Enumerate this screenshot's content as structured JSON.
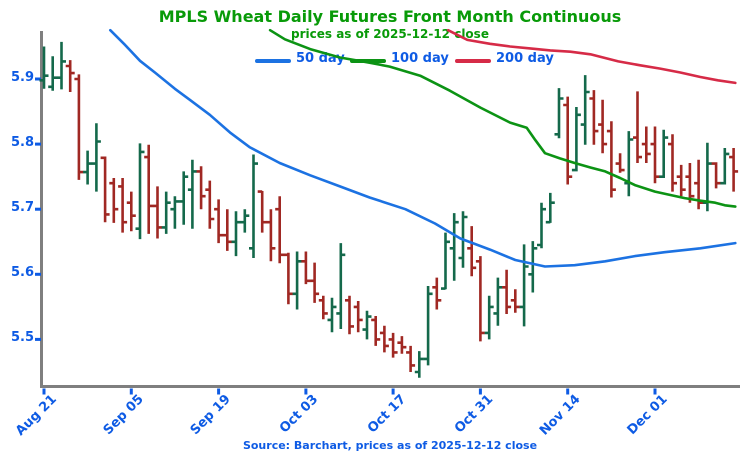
{
  "title": "MPLS Wheat Daily Futures Front Month Continuous",
  "subtitle": "prices as of 2025-12-12 close",
  "source": "Source: Barchart, prices as of 2025-12-12 close",
  "legend": [
    {
      "label": "50 day",
      "color": "#1c72e2"
    },
    {
      "label": "100 day",
      "color": "#0c9314"
    },
    {
      "label": "200 day",
      "color": "#d62b47"
    }
  ],
  "colors": {
    "bar_up": "#14694b",
    "bar_down": "#a02823",
    "axis": "#7f7f7f",
    "tick": "#0e5be4",
    "text_blue": "#0e5be4",
    "title_green": "#089a08"
  },
  "chart_data": {
    "type": "bar",
    "subtype": "ohlc-open-close-ticks",
    "title": "MPLS Wheat Daily Futures Front Month Continuous",
    "subtitle": "prices as of 2025-12-12 close",
    "xlabel": "",
    "ylabel": "",
    "grid": false,
    "legend_position": "top-center",
    "ylim": [
      5.43,
      5.975
    ],
    "yticks": [
      5.9,
      5.8,
      5.7,
      5.6,
      5.5
    ],
    "xtick_labels": [
      "Aug 21",
      "Sep 05",
      "Sep 19",
      "Oct 03",
      "Oct 17",
      "Oct 31",
      "Nov 14",
      "Dec 01"
    ],
    "xtick_day_index": [
      0,
      10,
      20,
      30,
      40,
      50,
      60,
      70
    ],
    "bars_ohlc": [
      [
        5.898,
        5.95,
        5.885,
        5.905
      ],
      [
        5.888,
        5.935,
        5.882,
        5.902
      ],
      [
        5.902,
        5.957,
        5.884,
        5.927
      ],
      [
        5.92,
        5.929,
        5.88,
        5.909
      ],
      [
        5.9,
        5.907,
        5.745,
        5.757
      ],
      [
        5.757,
        5.79,
        5.738,
        5.77
      ],
      [
        5.77,
        5.832,
        5.727,
        5.804
      ],
      [
        5.779,
        5.781,
        5.68,
        5.692
      ],
      [
        5.74,
        5.748,
        5.679,
        5.7
      ],
      [
        5.735,
        5.748,
        5.664,
        5.68
      ],
      [
        5.71,
        5.727,
        5.666,
        5.69
      ],
      [
        5.67,
        5.801,
        5.654,
        5.788
      ],
      [
        5.78,
        5.799,
        5.662,
        5.705
      ],
      [
        5.705,
        5.735,
        5.655,
        5.672
      ],
      [
        5.672,
        5.727,
        5.662,
        5.71
      ],
      [
        5.7,
        5.72,
        5.67,
        5.712
      ],
      [
        5.712,
        5.758,
        5.676,
        5.75
      ],
      [
        5.73,
        5.776,
        5.67,
        5.758
      ],
      [
        5.758,
        5.766,
        5.7,
        5.72
      ],
      [
        5.73,
        5.744,
        5.67,
        5.685
      ],
      [
        5.7,
        5.715,
        5.648,
        5.66
      ],
      [
        5.66,
        5.7,
        5.636,
        5.65
      ],
      [
        5.65,
        5.697,
        5.628,
        5.68
      ],
      [
        5.68,
        5.7,
        5.664,
        5.69
      ],
      [
        5.64,
        5.784,
        5.625,
        5.77
      ],
      [
        5.727,
        5.728,
        5.664,
        5.68
      ],
      [
        5.68,
        5.7,
        5.62,
        5.64
      ],
      [
        5.7,
        5.72,
        5.617,
        5.63
      ],
      [
        5.63,
        5.633,
        5.554,
        5.57
      ],
      [
        5.57,
        5.635,
        5.546,
        5.62
      ],
      [
        5.62,
        5.635,
        5.585,
        5.59
      ],
      [
        5.59,
        5.618,
        5.556,
        5.57
      ],
      [
        5.56,
        5.567,
        5.531,
        5.54
      ],
      [
        5.53,
        5.564,
        5.511,
        5.55
      ],
      [
        5.54,
        5.648,
        5.516,
        5.63
      ],
      [
        5.56,
        5.567,
        5.508,
        5.52
      ],
      [
        5.55,
        5.559,
        5.511,
        5.53
      ],
      [
        5.515,
        5.544,
        5.5,
        5.535
      ],
      [
        5.53,
        5.536,
        5.49,
        5.5
      ],
      [
        5.51,
        5.521,
        5.48,
        5.49
      ],
      [
        5.5,
        5.51,
        5.472,
        5.48
      ],
      [
        5.495,
        5.505,
        5.478,
        5.488
      ],
      [
        5.48,
        5.49,
        5.45,
        5.46
      ],
      [
        5.45,
        5.482,
        5.441,
        5.47
      ],
      [
        5.47,
        5.582,
        5.46,
        5.57
      ],
      [
        5.58,
        5.595,
        5.546,
        5.56
      ],
      [
        5.578,
        5.664,
        5.577,
        5.65
      ],
      [
        5.64,
        5.694,
        5.59,
        5.68
      ],
      [
        5.625,
        5.697,
        5.61,
        5.688
      ],
      [
        5.64,
        5.674,
        5.597,
        5.61
      ],
      [
        5.62,
        5.628,
        5.497,
        5.51
      ],
      [
        5.51,
        5.567,
        5.5,
        5.55
      ],
      [
        5.54,
        5.595,
        5.521,
        5.58
      ],
      [
        5.58,
        5.607,
        5.539,
        5.55
      ],
      [
        5.56,
        5.577,
        5.541,
        5.55
      ],
      [
        5.55,
        5.646,
        5.52,
        5.612
      ],
      [
        5.6,
        5.651,
        5.572,
        5.64
      ],
      [
        5.645,
        5.71,
        5.64,
        5.7
      ],
      [
        5.68,
        5.725,
        5.679,
        5.71
      ],
      [
        5.815,
        5.886,
        5.809,
        5.87
      ],
      [
        5.86,
        5.873,
        5.738,
        5.75
      ],
      [
        5.76,
        5.857,
        5.758,
        5.845
      ],
      [
        5.83,
        5.906,
        5.799,
        5.88
      ],
      [
        5.87,
        5.883,
        5.799,
        5.82
      ],
      [
        5.83,
        5.868,
        5.786,
        5.8
      ],
      [
        5.82,
        5.835,
        5.718,
        5.73
      ],
      [
        5.77,
        5.786,
        5.756,
        5.76
      ],
      [
        5.74,
        5.82,
        5.72,
        5.807
      ],
      [
        5.81,
        5.881,
        5.771,
        5.78
      ],
      [
        5.8,
        5.827,
        5.771,
        5.785
      ],
      [
        5.8,
        5.827,
        5.74,
        5.75
      ],
      [
        5.75,
        5.822,
        5.748,
        5.81
      ],
      [
        5.8,
        5.815,
        5.727,
        5.74
      ],
      [
        5.75,
        5.768,
        5.72,
        5.73
      ],
      [
        5.75,
        5.771,
        5.71,
        5.72
      ],
      [
        5.74,
        5.776,
        5.7,
        5.71
      ],
      [
        5.71,
        5.802,
        5.697,
        5.77
      ],
      [
        5.77,
        5.772,
        5.732,
        5.74
      ],
      [
        5.74,
        5.794,
        5.738,
        5.785
      ],
      [
        5.78,
        5.794,
        5.727,
        5.758
      ]
    ],
    "series": [
      {
        "name": "50 day",
        "color": "#1c72e2",
        "points": [
          [
            7.6,
            5.975
          ],
          [
            9.3,
            5.952
          ],
          [
            11.0,
            5.928
          ],
          [
            12.7,
            5.91
          ],
          [
            15.0,
            5.885
          ],
          [
            16.7,
            5.868
          ],
          [
            19.0,
            5.845
          ],
          [
            21.3,
            5.818
          ],
          [
            23.6,
            5.795
          ],
          [
            27.0,
            5.771
          ],
          [
            30.5,
            5.752
          ],
          [
            33.9,
            5.735
          ],
          [
            37.3,
            5.718
          ],
          [
            41.4,
            5.7
          ],
          [
            44.8,
            5.678
          ],
          [
            47.7,
            5.655
          ],
          [
            51.1,
            5.638
          ],
          [
            54.0,
            5.622
          ],
          [
            57.4,
            5.612
          ],
          [
            60.8,
            5.614
          ],
          [
            64.3,
            5.62
          ],
          [
            67.7,
            5.628
          ],
          [
            71.1,
            5.634
          ],
          [
            75.2,
            5.64
          ],
          [
            79.2,
            5.648
          ]
        ]
      },
      {
        "name": "100 day",
        "color": "#0c9314",
        "points": [
          [
            25.9,
            5.975
          ],
          [
            27.6,
            5.961
          ],
          [
            30.5,
            5.946
          ],
          [
            33.9,
            5.933
          ],
          [
            37.3,
            5.925
          ],
          [
            39.6,
            5.919
          ],
          [
            43.1,
            5.905
          ],
          [
            46.5,
            5.882
          ],
          [
            50.0,
            5.856
          ],
          [
            53.4,
            5.833
          ],
          [
            55.3,
            5.825
          ],
          [
            56.3,
            5.806
          ],
          [
            57.4,
            5.786
          ],
          [
            59.1,
            5.778
          ],
          [
            60.8,
            5.771
          ],
          [
            62.6,
            5.764
          ],
          [
            64.3,
            5.758
          ],
          [
            66.0,
            5.748
          ],
          [
            67.7,
            5.737
          ],
          [
            70.0,
            5.727
          ],
          [
            71.7,
            5.722
          ],
          [
            73.4,
            5.717
          ],
          [
            75.2,
            5.713
          ],
          [
            76.9,
            5.71
          ],
          [
            78.0,
            5.706
          ],
          [
            79.2,
            5.704
          ]
        ]
      },
      {
        "name": "200 day",
        "color": "#d62b47",
        "points": [
          [
            46.3,
            5.975
          ],
          [
            48.5,
            5.96
          ],
          [
            51.1,
            5.954
          ],
          [
            53.4,
            5.95
          ],
          [
            55.7,
            5.947
          ],
          [
            58.0,
            5.944
          ],
          [
            60.3,
            5.942
          ],
          [
            62.6,
            5.938
          ],
          [
            65.8,
            5.927
          ],
          [
            68.3,
            5.921
          ],
          [
            70.6,
            5.916
          ],
          [
            72.9,
            5.91
          ],
          [
            75.2,
            5.903
          ],
          [
            77.2,
            5.898
          ],
          [
            79.2,
            5.894
          ]
        ]
      }
    ]
  }
}
